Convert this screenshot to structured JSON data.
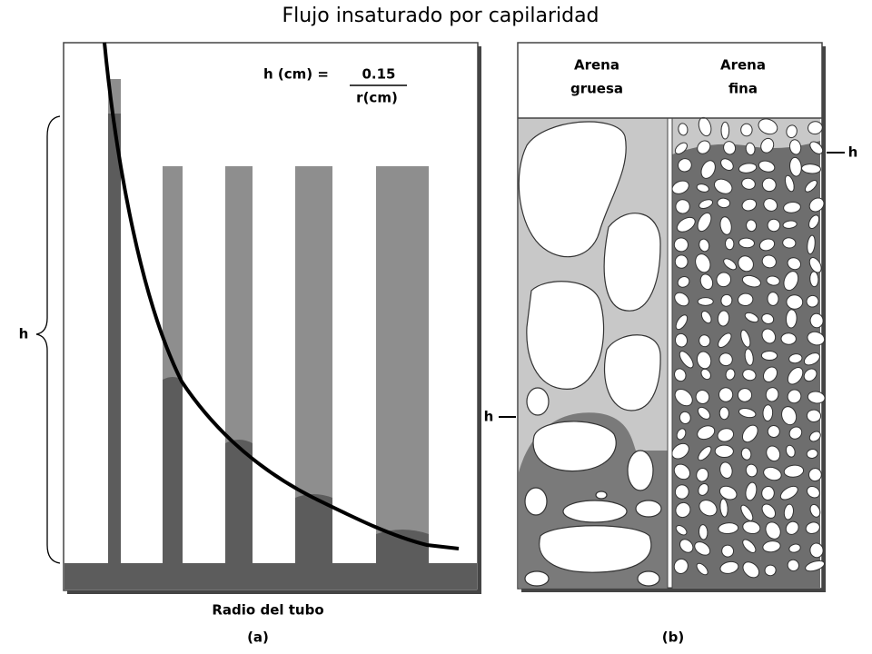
{
  "title": "Flujo insaturado por capilaridad",
  "panel_a": {
    "formula": {
      "lhs": "h (cm) =",
      "numerator": "0.15",
      "denominator": "r(cm)"
    },
    "h_label": "h",
    "x_label": "Radio del tubo",
    "caption": "(a)"
  },
  "panel_b": {
    "columns": [
      {
        "label_lines": [
          "Arena",
          "gruesa"
        ],
        "h_label": "h"
      },
      {
        "label_lines": [
          "Arena",
          "fina"
        ],
        "h_label": "h"
      }
    ],
    "caption": "(b)"
  }
}
